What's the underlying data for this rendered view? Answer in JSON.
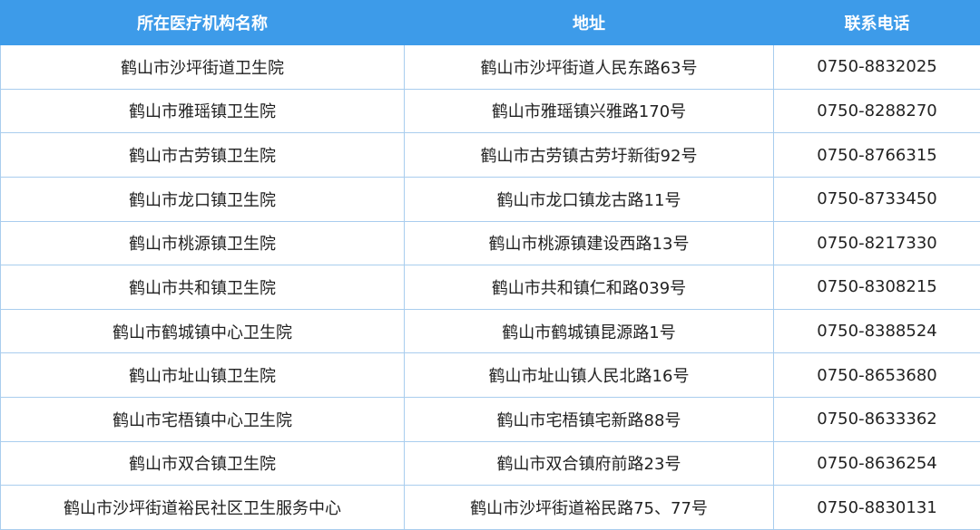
{
  "table": {
    "header": [
      "所在医疗机构名称",
      "地址",
      "联系电话"
    ],
    "rows": [
      [
        "鹤山市沙坪街道卫生院",
        "鹤山市沙坪街道人民东路63号",
        "0750-8832025"
      ],
      [
        "鹤山市雅瑶镇卫生院",
        "鹤山市雅瑶镇兴雅路170号",
        "0750-8288270"
      ],
      [
        "鹤山市古劳镇卫生院",
        "鹤山市古劳镇古劳圩新街92号",
        "0750-8766315"
      ],
      [
        "鹤山市龙口镇卫生院",
        "鹤山市龙口镇龙古路11号",
        "0750-8733450"
      ],
      [
        "鹤山市桃源镇卫生院",
        "鹤山市桃源镇建设西路13号",
        "0750-8217330"
      ],
      [
        "鹤山市共和镇卫生院",
        "鹤山市共和镇仁和路039号",
        "0750-8308215"
      ],
      [
        "鹤山市鹤城镇中心卫生院",
        "鹤山市鹤城镇昆源路1号",
        "0750-8388524"
      ],
      [
        "鹤山市址山镇卫生院",
        "鹤山市址山镇人民北路16号",
        "0750-8653680"
      ],
      [
        "鹤山市宅梧镇中心卫生院",
        "鹤山市宅梧镇宅新路88号",
        "0750-8633362"
      ],
      [
        "鹤山市双合镇卫生院",
        "鹤山市双合镇府前路23号",
        "0750-8636254"
      ],
      [
        "鹤山市沙坪街道裕民社区卫生服务中心",
        "鹤山市沙坪街道裕民路75、77号",
        "0750-8830131"
      ]
    ]
  }
}
